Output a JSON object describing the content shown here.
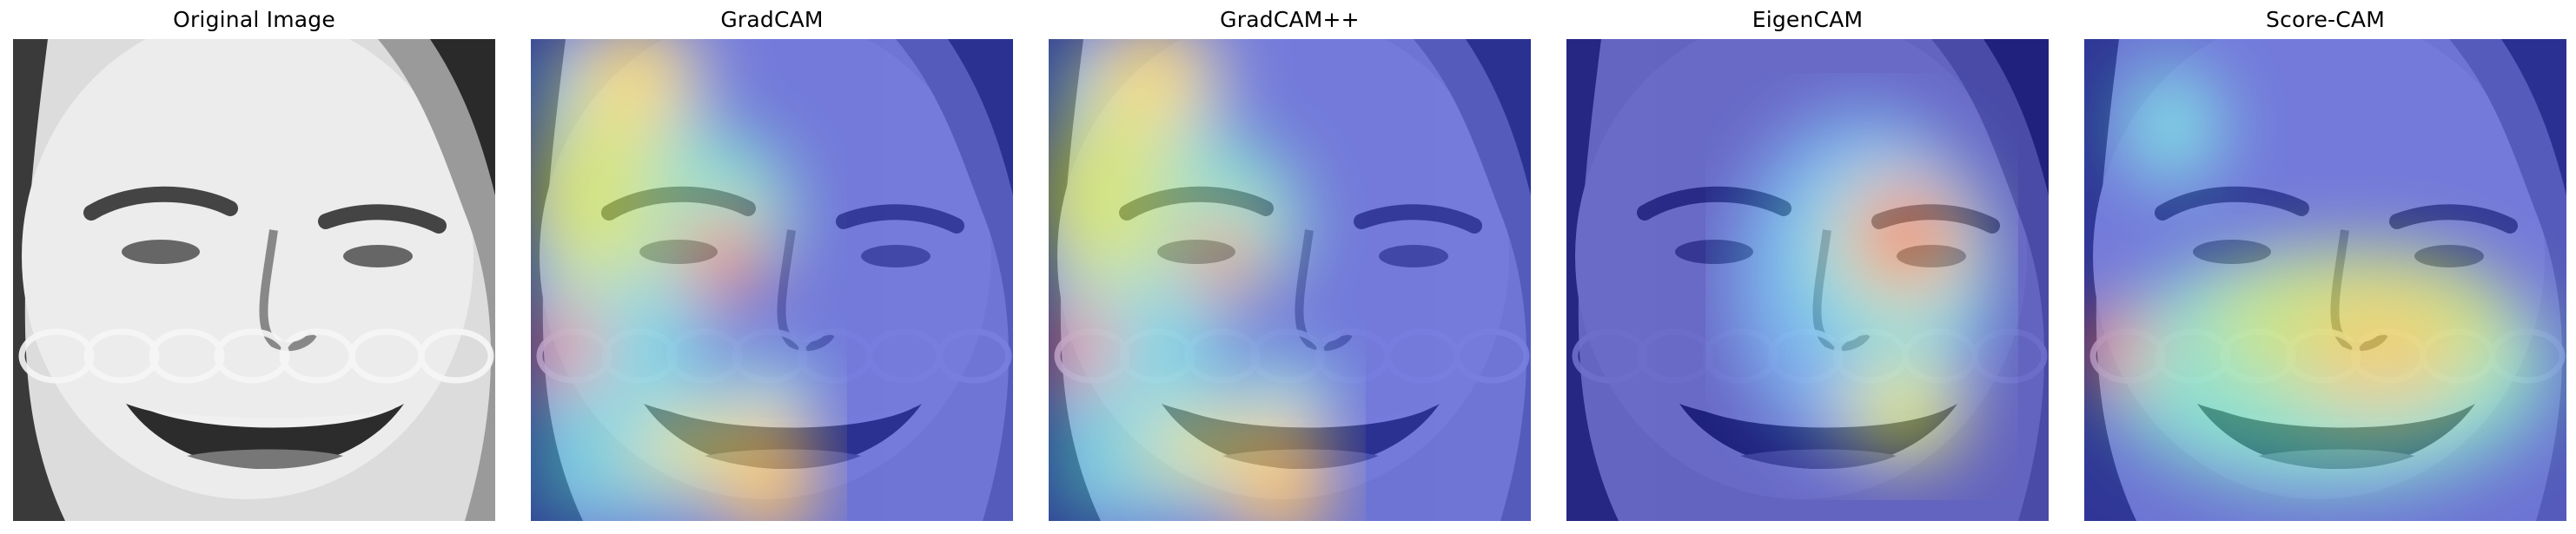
{
  "panels": [
    {
      "title": "Original Image",
      "kind": "original"
    },
    {
      "title": "GradCAM",
      "kind": "gradcam"
    },
    {
      "title": "GradCAM++",
      "kind": "gradcampp"
    },
    {
      "title": "EigenCAM",
      "kind": "eigencam"
    },
    {
      "title": "Score-CAM",
      "kind": "scorecam"
    }
  ],
  "colors": {
    "background": "#ffffff",
    "heat_low": "#1e2cc8",
    "heat_mid": "#3ee0e0",
    "heat_high": "#f03020"
  }
}
